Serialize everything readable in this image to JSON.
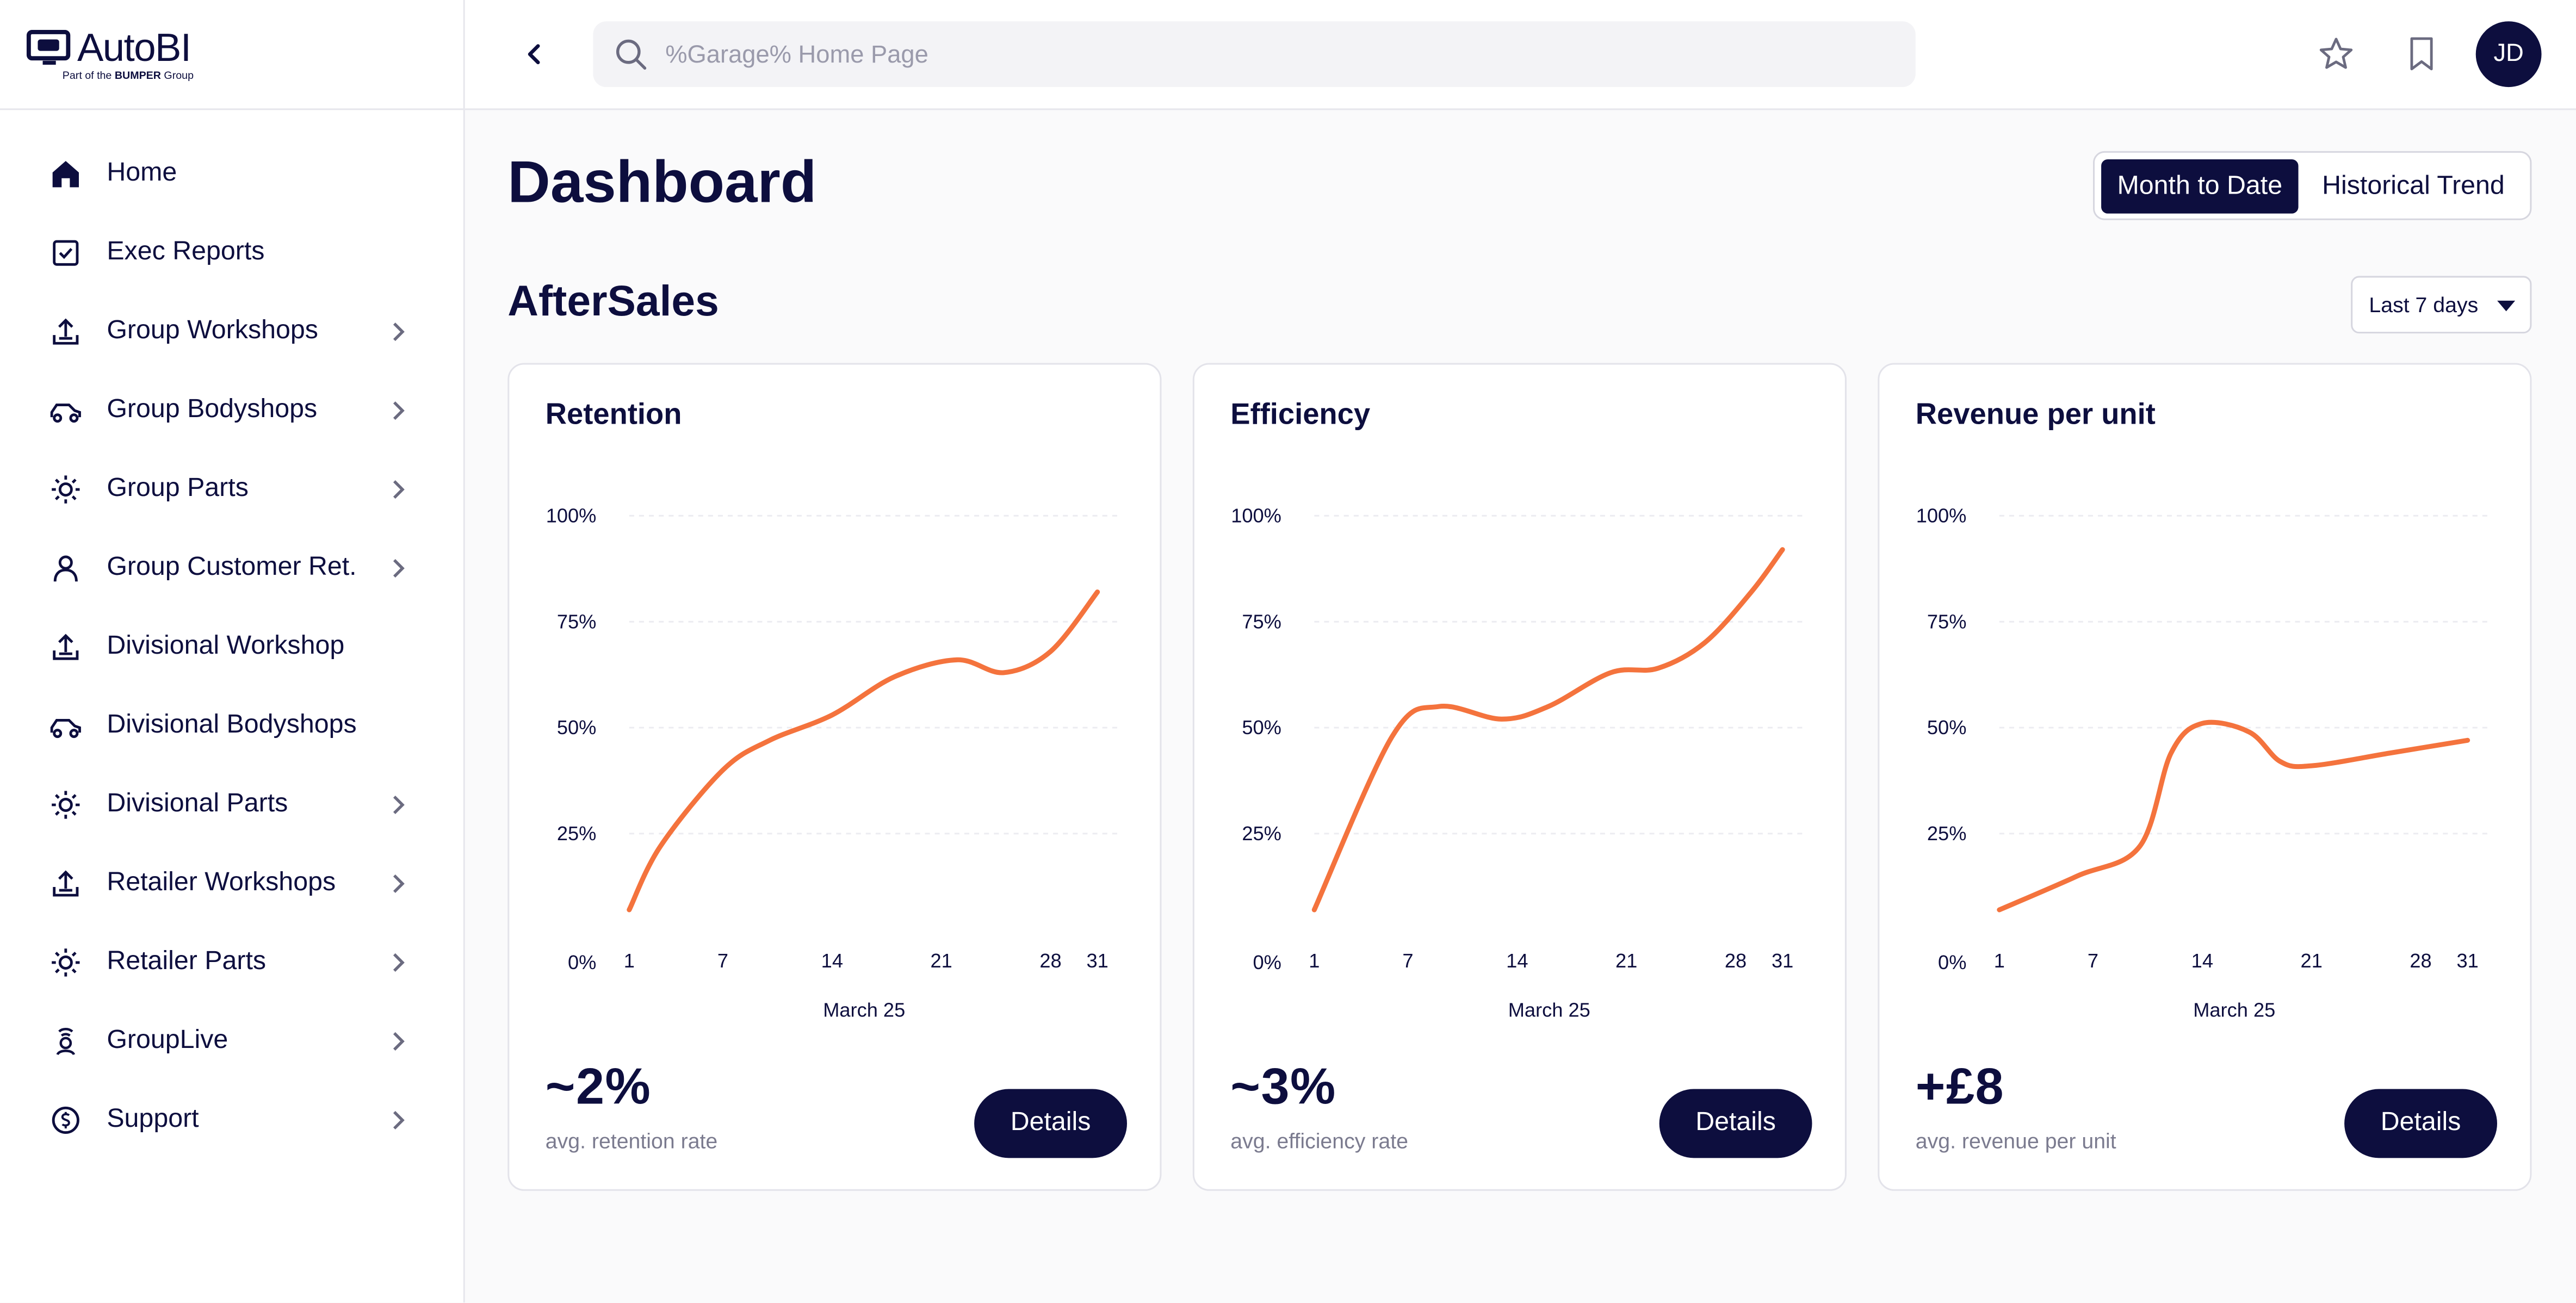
{
  "app": {
    "logo_text": "AutoBI",
    "logo_sub_prefix": "Part of the",
    "logo_sub_brand": "BUMPER",
    "logo_sub_suffix": "Group"
  },
  "sidebar": {
    "items": [
      {
        "label": "Home",
        "icon": "home-icon",
        "active": true,
        "chevron": false
      },
      {
        "label": "Exec Reports",
        "icon": "checkbox-icon",
        "active": false,
        "chevron": false
      },
      {
        "label": "Group Workshops",
        "icon": "upload-tray-icon",
        "active": false,
        "chevron": true
      },
      {
        "label": "Group Bodyshops",
        "icon": "car-icon",
        "active": false,
        "chevron": true
      },
      {
        "label": "Group Parts",
        "icon": "sun-gear-icon",
        "active": false,
        "chevron": true
      },
      {
        "label": "Group Customer Ret.",
        "icon": "person-icon",
        "active": false,
        "chevron": true
      },
      {
        "label": "Divisional Workshop",
        "icon": "upload-tray-icon",
        "active": false,
        "chevron": false
      },
      {
        "label": "Divisional Bodyshops",
        "icon": "car-icon",
        "active": false,
        "chevron": false
      },
      {
        "label": "Divisional Parts",
        "icon": "sun-gear-icon",
        "active": false,
        "chevron": true
      },
      {
        "label": "Retailer Workshops",
        "icon": "upload-tray-icon",
        "active": false,
        "chevron": true
      },
      {
        "label": "Retailer Parts",
        "icon": "sun-gear-icon",
        "active": false,
        "chevron": true
      },
      {
        "label": "GroupLive",
        "icon": "broadcast-icon",
        "active": false,
        "chevron": true
      },
      {
        "label": "Support",
        "icon": "clock-dollar-icon",
        "active": false,
        "chevron": true
      }
    ]
  },
  "topbar": {
    "search_placeholder": "%Garage% Home Page",
    "avatar_initials": "JD"
  },
  "header": {
    "title": "Dashboard",
    "toggle_active": "Month to Date",
    "toggle_inactive": "Historical Trend"
  },
  "section": {
    "title": "AfterSales",
    "range_label": "Last 7 days"
  },
  "colors": {
    "navy": "#0d0e3e",
    "accent": "#f4733d",
    "active_bg": "#ececf1"
  },
  "cards": [
    {
      "title": "Retention",
      "metric": "~2%",
      "metric_label": "avg. retention rate",
      "button_label": "Details"
    },
    {
      "title": "Efficiency",
      "metric": "~3%",
      "metric_label": "avg. efficiency rate",
      "button_label": "Details"
    },
    {
      "title": "Revenue per unit",
      "metric": "+£8",
      "metric_label": "avg. revenue per unit",
      "button_label": "Details"
    }
  ],
  "chart_data": [
    {
      "type": "line",
      "title": "Retention",
      "xlabel": "March 25",
      "ylabel": "",
      "x_ticks": [
        "1",
        "7",
        "14",
        "21",
        "28",
        "31"
      ],
      "y_ticks": [
        "0%",
        "25%",
        "50%",
        "75%",
        "100%"
      ],
      "ylim": [
        0,
        100
      ],
      "xlim": [
        1,
        31
      ],
      "x": [
        1,
        3,
        7,
        10,
        14,
        18,
        22,
        25,
        28,
        31
      ],
      "y": [
        7,
        22,
        40,
        47,
        53,
        62,
        66,
        63,
        68,
        82
      ]
    },
    {
      "type": "line",
      "title": "Efficiency",
      "xlabel": "March 25",
      "ylabel": "",
      "x_ticks": [
        "1",
        "7",
        "14",
        "21",
        "28",
        "31"
      ],
      "y_ticks": [
        "0%",
        "25%",
        "50%",
        "75%",
        "100%"
      ],
      "ylim": [
        0,
        100
      ],
      "xlim": [
        1,
        31
      ],
      "x": [
        1,
        6,
        9,
        13,
        16,
        20,
        23,
        26,
        29,
        31
      ],
      "y": [
        7,
        48,
        55,
        52,
        55,
        63,
        64,
        70,
        82,
        92
      ]
    },
    {
      "type": "line",
      "title": "Revenue per unit",
      "xlabel": "March 25",
      "ylabel": "",
      "x_ticks": [
        "1",
        "7",
        "14",
        "21",
        "28",
        "31"
      ],
      "y_ticks": [
        "0%",
        "25%",
        "50%",
        "75%",
        "100%"
      ],
      "ylim": [
        0,
        100
      ],
      "xlim": [
        1,
        31
      ],
      "x": [
        1,
        6,
        10,
        12,
        14,
        17,
        19,
        21,
        26,
        31
      ],
      "y": [
        7,
        15,
        22,
        44,
        51,
        49,
        42,
        41,
        44,
        47
      ]
    }
  ]
}
